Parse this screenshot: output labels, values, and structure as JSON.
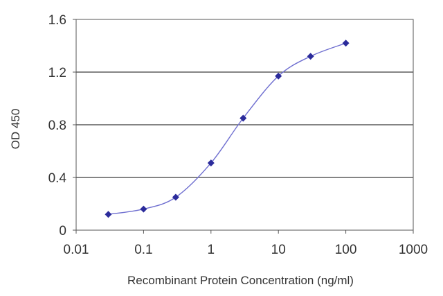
{
  "chart_data": {
    "type": "scatter",
    "xlabel": "Recombinant Protein Concentration (ng/ml)",
    "ylabel": "OD 450",
    "x_scale": "log",
    "xlim": [
      0.01,
      1000
    ],
    "ylim": [
      0,
      1.6
    ],
    "x_ticks": [
      "0.01",
      "0.1",
      "1",
      "10",
      "100",
      "1000"
    ],
    "y_ticks": [
      "0",
      "0.4",
      "0.8",
      "1.2",
      "1.6"
    ],
    "grid": "horizontal",
    "series": [
      {
        "x": [
          0.03,
          0.1,
          0.3,
          1,
          3,
          10,
          30,
          100
        ],
        "y": [
          0.12,
          0.16,
          0.25,
          0.51,
          0.85,
          1.17,
          1.32,
          1.42
        ]
      }
    ],
    "colors": {
      "series": "#2b2b9b",
      "line": "#6f6fd0",
      "grid": "#3a3a3a",
      "axis": "#555555"
    }
  }
}
